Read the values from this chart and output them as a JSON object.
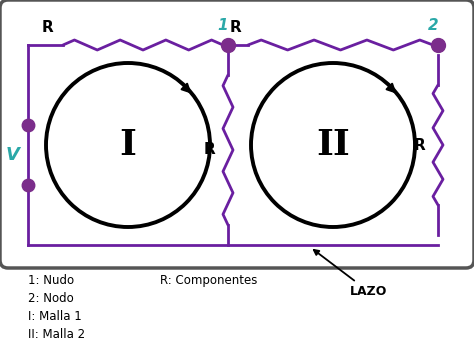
{
  "fig_width": 4.74,
  "fig_height": 3.64,
  "dpi": 100,
  "bg_color": "#ffffff",
  "border_color": "#555555",
  "wire_color": "#6a1fa0",
  "resistor_color": "#6a1fa0",
  "node_color": "#7b2d8b",
  "loop_color": "#000000",
  "label_color_teal": "#2aa8a8",
  "label_color_black": "#111111",
  "V_label_color": "#2aa8a8",
  "legend_lines_left": [
    "1: Nudo",
    "2: Nodo",
    "I: Malla 1",
    "II: Malla 2"
  ],
  "legend_right": "R: Componentes",
  "lazo_label": "LAZO",
  "node1_label": "1",
  "node2_label": "2",
  "V_label": "V"
}
